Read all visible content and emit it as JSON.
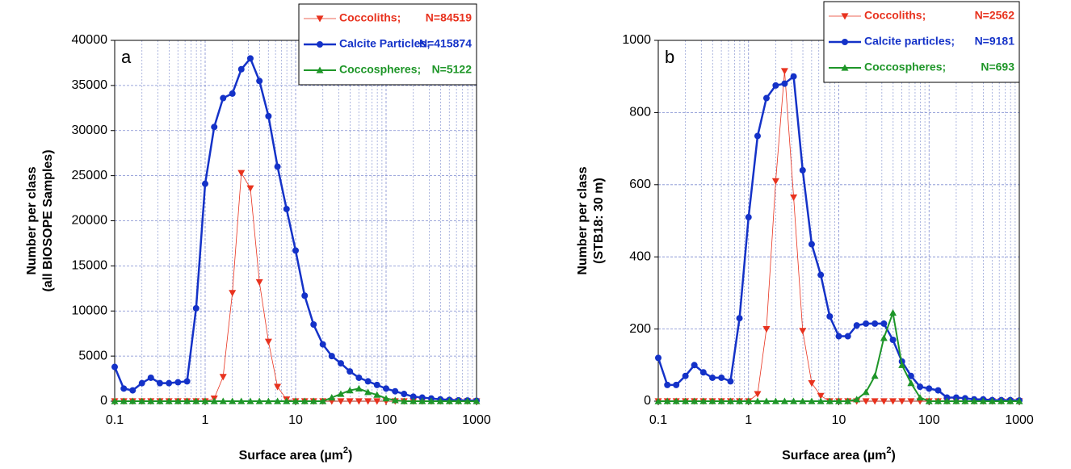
{
  "chart_data": [
    {
      "type": "line",
      "panel_label": "a",
      "xlabel": [
        "Surface area (µm",
        "2",
        ")"
      ],
      "ylabel": [
        "Number per class",
        "(all BIOSOPE Samples)"
      ],
      "log_x": true,
      "grid": true,
      "legend": "top-right",
      "xlim": [
        0.1,
        1000
      ],
      "xticks": [
        0.1,
        1,
        10,
        100,
        1000
      ],
      "xminor": [
        0.2,
        0.3,
        0.4,
        0.5,
        0.6,
        0.7,
        0.8,
        0.9,
        2,
        3,
        4,
        5,
        6,
        7,
        8,
        9,
        20,
        30,
        40,
        50,
        60,
        70,
        80,
        90,
        200,
        300,
        400,
        500,
        600,
        700,
        800,
        900
      ],
      "ylim": [
        0,
        40000
      ],
      "yticks": [
        0,
        5000,
        10000,
        15000,
        20000,
        25000,
        30000,
        35000,
        40000
      ],
      "x": [
        0.1,
        0.126,
        0.158,
        0.2,
        0.251,
        0.316,
        0.398,
        0.501,
        0.631,
        0.794,
        1,
        1.26,
        1.58,
        2,
        2.51,
        3.16,
        3.98,
        5.01,
        6.31,
        7.94,
        10,
        12.6,
        15.8,
        20,
        25.1,
        31.6,
        39.8,
        50.1,
        63.1,
        79.4,
        100,
        126,
        158,
        200,
        251,
        316,
        398,
        501,
        631,
        794,
        1000
      ],
      "series": [
        {
          "name": "Coccoliths;",
          "count": "N=84519",
          "color": "#e8321e",
          "marker": "triangle-down",
          "values": [
            0,
            0,
            0,
            0,
            0,
            0,
            0,
            0,
            0,
            0,
            0,
            300,
            2700,
            12000,
            25300,
            23600,
            13200,
            6600,
            1600,
            200,
            0,
            0,
            0,
            0,
            0,
            0,
            0,
            0,
            0,
            0,
            0,
            0,
            0,
            0,
            0,
            0,
            0,
            0,
            0,
            0,
            0
          ]
        },
        {
          "name": "Calcite Particles;",
          "count": "N=415874",
          "color": "#1432c8",
          "marker": "circle",
          "values": [
            3800,
            1400,
            1200,
            2000,
            2600,
            2000,
            2000,
            2100,
            2200,
            10300,
            24100,
            30400,
            33600,
            34100,
            36800,
            38000,
            35500,
            31600,
            26000,
            21300,
            16700,
            11700,
            8500,
            6300,
            5000,
            4200,
            3300,
            2600,
            2200,
            1800,
            1400,
            1100,
            800,
            500,
            400,
            300,
            200,
            150,
            100,
            80,
            50
          ]
        },
        {
          "name": "Coccospheres;",
          "count": "N=5122",
          "color": "#1e9628",
          "marker": "triangle-up",
          "values": [
            0,
            0,
            0,
            0,
            0,
            0,
            0,
            0,
            0,
            0,
            0,
            0,
            0,
            0,
            0,
            0,
            0,
            0,
            0,
            0,
            0,
            0,
            0,
            0,
            400,
            800,
            1200,
            1400,
            1000,
            700,
            300,
            100,
            0,
            0,
            0,
            0,
            0,
            0,
            0,
            0,
            0
          ]
        }
      ]
    },
    {
      "type": "line",
      "panel_label": "b",
      "xlabel": [
        "Surface area (µm",
        "2",
        ")"
      ],
      "ylabel": [
        "Number per class",
        "(STB18: 30 m)"
      ],
      "log_x": true,
      "grid": true,
      "legend": "top-right",
      "xlim": [
        0.1,
        1000
      ],
      "xticks": [
        0.1,
        1,
        10,
        100,
        1000
      ],
      "xminor": [
        0.2,
        0.3,
        0.4,
        0.5,
        0.6,
        0.7,
        0.8,
        0.9,
        2,
        3,
        4,
        5,
        6,
        7,
        8,
        9,
        20,
        30,
        40,
        50,
        60,
        70,
        80,
        90,
        200,
        300,
        400,
        500,
        600,
        700,
        800,
        900
      ],
      "ylim": [
        0,
        1000
      ],
      "yticks": [
        0,
        200,
        400,
        600,
        800,
        1000
      ],
      "x": [
        0.1,
        0.126,
        0.158,
        0.2,
        0.251,
        0.316,
        0.398,
        0.501,
        0.631,
        0.794,
        1,
        1.26,
        1.58,
        2,
        2.51,
        3.16,
        3.98,
        5.01,
        6.31,
        7.94,
        10,
        12.6,
        15.8,
        20,
        25.1,
        31.6,
        39.8,
        50.1,
        63.1,
        79.4,
        100,
        126,
        158,
        200,
        251,
        316,
        398,
        501,
        631,
        794,
        1000
      ],
      "series": [
        {
          "name": "Coccoliths;",
          "count": "N=2562",
          "color": "#e8321e",
          "marker": "triangle-down",
          "values": [
            0,
            0,
            0,
            0,
            0,
            0,
            0,
            0,
            0,
            0,
            0,
            20,
            200,
            610,
            915,
            565,
            195,
            50,
            15,
            0,
            0,
            0,
            0,
            0,
            0,
            0,
            0,
            0,
            0,
            0,
            0,
            0,
            0,
            0,
            0,
            0,
            0,
            0,
            0,
            0,
            0
          ]
        },
        {
          "name": "Calcite particles;",
          "count": "N=9181",
          "color": "#1432c8",
          "marker": "circle",
          "values": [
            120,
            45,
            45,
            70,
            100,
            80,
            65,
            65,
            55,
            230,
            510,
            735,
            840,
            875,
            880,
            900,
            640,
            435,
            350,
            235,
            180,
            180,
            210,
            215,
            215,
            215,
            170,
            110,
            70,
            40,
            35,
            30,
            10,
            10,
            8,
            5,
            5,
            3,
            3,
            3,
            2
          ]
        },
        {
          "name": "Coccospheres;",
          "count": "N=693",
          "color": "#1e9628",
          "marker": "triangle-up",
          "values": [
            0,
            0,
            0,
            0,
            0,
            0,
            0,
            0,
            0,
            0,
            0,
            0,
            0,
            0,
            0,
            0,
            0,
            0,
            0,
            0,
            0,
            0,
            5,
            25,
            70,
            175,
            245,
            100,
            50,
            10,
            0,
            0,
            0,
            0,
            0,
            0,
            0,
            0,
            0,
            0,
            0
          ]
        }
      ]
    }
  ]
}
